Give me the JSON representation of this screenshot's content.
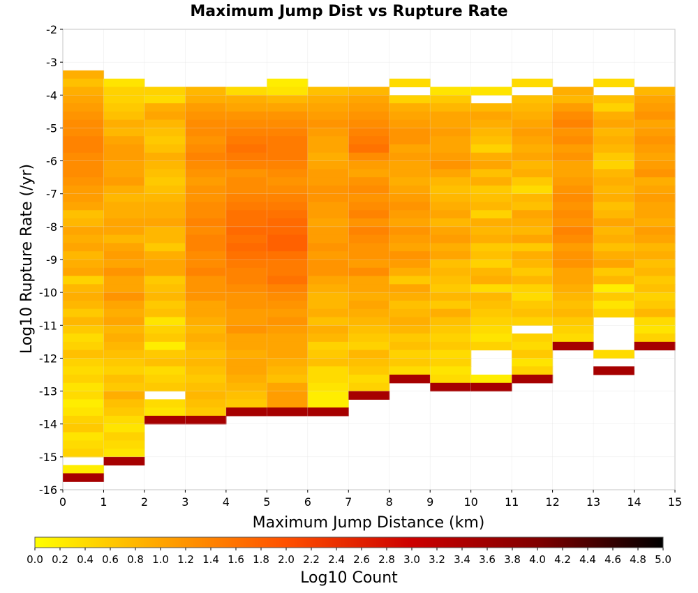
{
  "chart_data": {
    "type": "heatmap",
    "title": "Maximum Jump Dist vs Rupture Rate",
    "xlabel": "Maximum Jump Distance (km)",
    "ylabel": "Log10 Rupture Rate (/yr)",
    "colorbar_label": "Log10 Count",
    "xlim": [
      0,
      15
    ],
    "ylim": [
      -16,
      -2
    ],
    "x_bin_width": 1,
    "y_bin_width": 0.25,
    "x_ticks": [
      "0",
      "1",
      "2",
      "3",
      "4",
      "5",
      "6",
      "7",
      "8",
      "9",
      "10",
      "11",
      "12",
      "13",
      "14",
      "15"
    ],
    "y_ticks": [
      "-2",
      "-3",
      "-4",
      "-5",
      "-6",
      "-7",
      "-8",
      "-9",
      "-10",
      "-11",
      "-12",
      "-13",
      "-14",
      "-15",
      "-16"
    ],
    "color_range": [
      0.0,
      5.0
    ],
    "colorbar_ticks": [
      "0.0",
      "0.2",
      "0.4",
      "0.6",
      "0.8",
      "1.0",
      "1.2",
      "1.4",
      "1.6",
      "1.8",
      "2.0",
      "2.2",
      "2.4",
      "2.6",
      "2.8",
      "3.0",
      "3.2",
      "3.4",
      "3.6",
      "3.8",
      "4.0",
      "4.2",
      "4.4",
      "4.6",
      "4.8",
      "5.0"
    ],
    "colormap": [
      "#ffff00",
      "#ffa500",
      "#ff5000",
      "#cc0000",
      "#800000",
      "#000000"
    ],
    "grid": true,
    "columns": [
      {
        "x": 0,
        "start_y": -3.25,
        "values": [
          0.9,
          0.7,
          0.9,
          1.0,
          1.1,
          1.2,
          1.3,
          1.3,
          1.4,
          1.4,
          1.3,
          1.3,
          1.3,
          1.2,
          1.1,
          1.1,
          1.0,
          0.7,
          0.8,
          1.0,
          0.9,
          1.0,
          0.8,
          0.9,
          1.0,
          0.5,
          0.8,
          0.9,
          0.8,
          0.6,
          0.8,
          0.6,
          0.4,
          0.5,
          0.7,
          0.5,
          0.4,
          0.5,
          0.3,
          0.4,
          0.2,
          0.3,
          0.5,
          0.6,
          0.3,
          0.4,
          0.5,
          null,
          0.2,
          3.5
        ]
      },
      {
        "x": 1,
        "start_y": -3.5,
        "values": [
          0.3,
          0.5,
          0.5,
          0.6,
          0.7,
          0.9,
          0.8,
          1.0,
          1.1,
          1.1,
          1.0,
          1.0,
          1.1,
          0.9,
          0.8,
          0.9,
          0.9,
          1.0,
          1.0,
          0.8,
          1.0,
          1.1,
          1.0,
          1.2,
          1.0,
          1.0,
          1.2,
          1.0,
          0.9,
          1.0,
          0.8,
          0.9,
          0.8,
          0.7,
          0.6,
          0.5,
          0.7,
          0.6,
          0.9,
          0.7,
          0.6,
          0.4,
          0.3,
          0.5,
          0.4,
          0.3,
          3.5
        ]
      },
      {
        "x": 2,
        "start_y": -3.75,
        "values": [
          0.5,
          0.4,
          0.9,
          1.0,
          0.8,
          0.7,
          0.6,
          0.7,
          0.9,
          0.8,
          0.7,
          0.6,
          0.7,
          0.8,
          0.9,
          0.9,
          1.0,
          0.8,
          0.8,
          0.6,
          0.9,
          1.0,
          1.0,
          0.6,
          0.7,
          0.8,
          0.6,
          0.7,
          0.3,
          0.5,
          0.6,
          0.2,
          0.6,
          0.7,
          0.4,
          0.5,
          0.6,
          null,
          0.4,
          0.3,
          3.5
        ]
      },
      {
        "x": 3,
        "start_y": -3.75,
        "values": [
          0.8,
          0.9,
          1.1,
          1.2,
          1.3,
          1.3,
          1.2,
          1.3,
          1.4,
          1.3,
          1.2,
          1.1,
          1.2,
          1.2,
          1.3,
          1.3,
          1.4,
          1.3,
          1.4,
          1.4,
          1.3,
          1.3,
          1.4,
          1.2,
          1.2,
          1.2,
          1.0,
          1.0,
          0.9,
          0.8,
          0.9,
          0.8,
          0.7,
          0.8,
          0.7,
          0.6,
          0.7,
          0.8,
          0.7,
          0.6,
          3.5
        ]
      },
      {
        "x": 4,
        "start_y": -3.75,
        "values": [
          0.4,
          0.9,
          1.0,
          1.2,
          1.3,
          1.4,
          1.5,
          1.6,
          1.5,
          1.4,
          1.2,
          1.3,
          1.3,
          1.4,
          1.5,
          1.6,
          1.6,
          1.7,
          1.6,
          1.7,
          1.6,
          1.5,
          1.4,
          1.4,
          1.3,
          1.2,
          1.2,
          1.1,
          1.1,
          1.2,
          1.0,
          1.0,
          0.9,
          1.0,
          1.0,
          0.9,
          0.8,
          0.7,
          0.6,
          3.5
        ]
      },
      {
        "x": 5,
        "start_y": -3.5,
        "values": [
          0.2,
          0.3,
          0.8,
          1.0,
          1.2,
          1.3,
          1.4,
          1.5,
          1.5,
          1.5,
          1.4,
          1.3,
          1.2,
          1.3,
          1.4,
          1.5,
          1.6,
          1.7,
          1.7,
          1.8,
          1.8,
          1.6,
          1.5,
          1.5,
          1.6,
          1.4,
          1.3,
          1.2,
          1.1,
          1.2,
          1.1,
          1.0,
          1.0,
          1.0,
          0.9,
          0.8,
          0.7,
          1.0,
          1.1,
          1.1,
          3.5
        ]
      },
      {
        "x": 6,
        "start_y": -3.75,
        "values": [
          0.7,
          0.9,
          1.0,
          1.1,
          1.2,
          1.1,
          1.0,
          1.0,
          0.9,
          1.0,
          1.1,
          1.1,
          1.2,
          1.2,
          1.1,
          1.1,
          1.0,
          1.1,
          1.1,
          1.2,
          1.1,
          1.2,
          1.2,
          1.0,
          0.9,
          0.8,
          0.8,
          0.9,
          0.7,
          0.9,
          0.8,
          0.5,
          0.6,
          0.7,
          0.4,
          0.4,
          0.3,
          0.2,
          0.2,
          3.5
        ]
      },
      {
        "x": 7,
        "start_y": -3.75,
        "values": [
          0.8,
          1.0,
          1.1,
          1.2,
          1.3,
          1.4,
          1.5,
          1.6,
          1.3,
          1.1,
          1.0,
          1.2,
          1.3,
          1.2,
          1.3,
          1.4,
          1.2,
          1.4,
          1.3,
          1.2,
          1.2,
          1.1,
          1.3,
          1.0,
          1.0,
          0.9,
          1.0,
          0.9,
          0.8,
          0.7,
          0.6,
          0.5,
          0.8,
          0.7,
          0.6,
          0.4,
          0.5,
          3.5
        ]
      },
      {
        "x": 8,
        "start_y": -3.5,
        "values": [
          0.4,
          null,
          0.5,
          0.9,
          1.0,
          1.1,
          1.2,
          1.2,
          1.0,
          1.1,
          1.0,
          1.0,
          0.9,
          1.0,
          1.1,
          1.2,
          1.1,
          1.0,
          1.2,
          1.1,
          1.0,
          1.2,
          1.1,
          0.9,
          0.6,
          1.0,
          0.9,
          0.7,
          0.8,
          0.9,
          0.8,
          0.6,
          0.7,
          0.5,
          0.6,
          0.4,
          3.5
        ]
      },
      {
        "x": 9,
        "start_y": -3.75,
        "values": [
          0.3,
          0.6,
          0.8,
          1.0,
          1.0,
          1.1,
          1.0,
          1.0,
          1.1,
          1.2,
          1.0,
          0.8,
          0.7,
          0.8,
          0.9,
          1.0,
          0.8,
          1.0,
          1.1,
          0.9,
          1.0,
          0.7,
          0.8,
          0.7,
          0.6,
          0.8,
          0.6,
          0.9,
          0.7,
          0.6,
          0.5,
          0.6,
          0.4,
          0.5,
          0.3,
          0.4,
          3.5
        ]
      },
      {
        "x": 10,
        "start_y": -3.75,
        "values": [
          0.3,
          null,
          0.8,
          1.0,
          0.9,
          0.8,
          0.7,
          0.5,
          0.9,
          1.0,
          0.7,
          0.9,
          0.6,
          0.7,
          0.8,
          0.5,
          0.9,
          0.8,
          0.9,
          0.6,
          0.7,
          0.5,
          0.8,
          0.9,
          0.4,
          0.8,
          0.7,
          0.6,
          0.5,
          0.4,
          0.3,
          0.5,
          null,
          null,
          null,
          0.2,
          3.5
        ]
      },
      {
        "x": 11,
        "start_y": -3.5,
        "values": [
          0.4,
          null,
          0.7,
          0.8,
          0.9,
          1.0,
          1.1,
          1.0,
          0.9,
          1.0,
          0.8,
          0.9,
          0.6,
          0.4,
          0.8,
          0.7,
          1.0,
          0.9,
          0.8,
          1.0,
          0.6,
          0.9,
          0.8,
          0.6,
          0.8,
          0.5,
          0.4,
          0.6,
          0.7,
          0.5,
          null,
          0.5,
          0.4,
          0.6,
          0.3,
          0.5,
          3.5
        ]
      },
      {
        "x": 12,
        "start_y": -3.75,
        "values": [
          0.9,
          0.8,
          1.1,
          1.3,
          1.4,
          1.2,
          1.3,
          1.1,
          1.2,
          1.0,
          1.0,
          1.1,
          1.2,
          1.3,
          1.2,
          1.3,
          1.2,
          1.4,
          1.3,
          1.1,
          1.2,
          1.2,
          1.0,
          1.0,
          0.9,
          0.8,
          0.7,
          0.8,
          0.6,
          0.5,
          0.4,
          3.5
        ]
      },
      {
        "x": 13,
        "start_y": -3.5,
        "values": [
          0.4,
          null,
          0.7,
          0.5,
          0.9,
          1.0,
          0.8,
          0.9,
          0.8,
          0.6,
          0.5,
          0.8,
          0.9,
          0.8,
          0.9,
          0.7,
          0.8,
          1.0,
          0.8,
          0.9,
          0.7,
          0.9,
          1.0,
          0.6,
          0.8,
          0.2,
          0.6,
          0.3,
          0.5,
          null,
          null,
          null,
          null,
          0.4,
          null,
          3.5
        ]
      },
      {
        "x": 14,
        "start_y": -3.75,
        "values": [
          0.8,
          1.0,
          1.1,
          1.2,
          1.0,
          1.1,
          1.2,
          1.1,
          1.0,
          1.1,
          1.2,
          0.9,
          1.0,
          1.1,
          1.0,
          1.0,
          0.9,
          1.1,
          1.0,
          0.8,
          0.9,
          0.7,
          0.8,
          0.6,
          0.7,
          0.5,
          0.6,
          0.8,
          0.4,
          0.3,
          0.5,
          3.5
        ]
      }
    ]
  }
}
